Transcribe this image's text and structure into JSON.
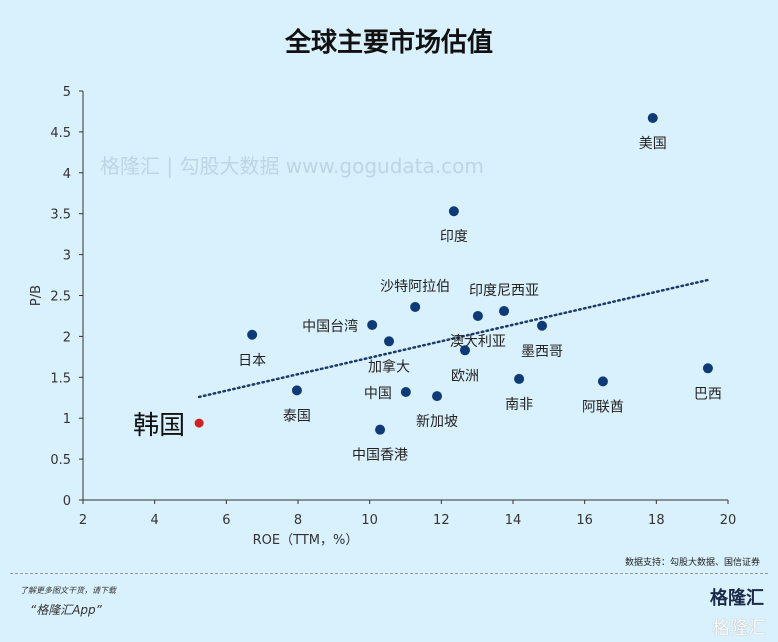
{
  "chart_data": {
    "type": "scatter",
    "title": "全球主要市场估值",
    "xlabel": "ROE（TTM，%）",
    "ylabel": "P/B",
    "xlim": [
      2,
      20
    ],
    "ylim": [
      0,
      5
    ],
    "xticks": [
      2,
      4,
      6,
      8,
      10,
      12,
      14,
      16,
      18,
      20
    ],
    "yticks": [
      0,
      0.5,
      1,
      1.5,
      2,
      2.5,
      3,
      3.5,
      4,
      4.5,
      5
    ],
    "ytick_labels": [
      "0",
      "0.5",
      "1",
      "1.5",
      "2",
      "2.5",
      "3",
      "3.5",
      "4",
      "4.5",
      "5"
    ],
    "grid": false,
    "points": [
      {
        "label": "美国",
        "x": 17.9,
        "y": 4.67,
        "pos": "below"
      },
      {
        "label": "印度",
        "x": 12.35,
        "y": 3.53,
        "pos": "below"
      },
      {
        "label": "沙特阿拉伯",
        "x": 11.27,
        "y": 2.36,
        "pos": "above"
      },
      {
        "label": "印度尼西亚",
        "x": 13.75,
        "y": 2.31,
        "pos": "above"
      },
      {
        "label": "澳大利亚",
        "x": 13.02,
        "y": 2.25,
        "pos": "below"
      },
      {
        "label": "墨西哥",
        "x": 14.81,
        "y": 2.13,
        "pos": "below"
      },
      {
        "label": "中国台湾",
        "x": 10.07,
        "y": 2.14,
        "pos": "left"
      },
      {
        "label": "加拿大",
        "x": 10.54,
        "y": 1.94,
        "pos": "below"
      },
      {
        "label": "欧洲",
        "x": 12.66,
        "y": 1.83,
        "pos": "below"
      },
      {
        "label": "日本",
        "x": 6.72,
        "y": 2.02,
        "pos": "below"
      },
      {
        "label": "巴西",
        "x": 19.44,
        "y": 1.61,
        "pos": "below"
      },
      {
        "label": "南非",
        "x": 14.17,
        "y": 1.48,
        "pos": "below"
      },
      {
        "label": "阿联酋",
        "x": 16.51,
        "y": 1.45,
        "pos": "below"
      },
      {
        "label": "泰国",
        "x": 7.97,
        "y": 1.34,
        "pos": "below"
      },
      {
        "label": "中国",
        "x": 11.01,
        "y": 1.32,
        "pos": "left"
      },
      {
        "label": "新加坡",
        "x": 11.88,
        "y": 1.27,
        "pos": "below"
      },
      {
        "label": "中国香港",
        "x": 10.29,
        "y": 0.86,
        "pos": "below"
      },
      {
        "label": "韩国",
        "x": 5.24,
        "y": 0.94,
        "pos": "leftbig",
        "highlight": true
      }
    ],
    "trendline": {
      "style": "dotted",
      "x": [
        5.24,
        19.44
      ],
      "y": [
        1.26,
        2.69
      ]
    },
    "colors": {
      "point": "#0e3a78",
      "highlight": "#d42020",
      "trend": "#1e3a6a",
      "axis": "#333333"
    }
  },
  "source": "数据支持：勾股大数据、国信证券",
  "watermark": "格隆汇 | 勾股大数据 www.gogudata.com",
  "promo": {
    "line1": "了解更多图文干货，请下载",
    "line2": "“格隆汇App”"
  },
  "logo": "格隆汇",
  "logo_bottom": "格隆汇"
}
